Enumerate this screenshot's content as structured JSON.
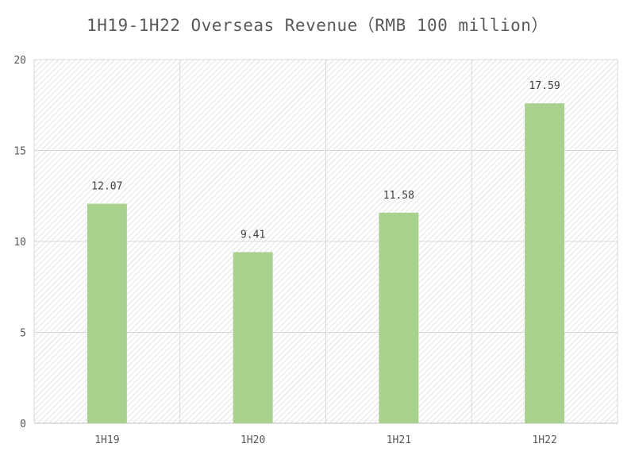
{
  "chart_data": {
    "type": "bar",
    "title": "1H19-1H22 Overseas Revenue（RMB 100 million）",
    "categories": [
      "1H19",
      "1H20",
      "1H21",
      "1H22"
    ],
    "values": [
      12.07,
      9.41,
      11.58,
      17.59
    ],
    "value_labels": [
      "12.07",
      "9.41",
      "11.58",
      "17.59"
    ],
    "xlabel": "",
    "ylabel": "",
    "ylim": [
      0,
      20
    ],
    "yticks": [
      0,
      5,
      10,
      15,
      20
    ],
    "grid": true,
    "legend": "none",
    "colors": {
      "bar": "#a9d18e",
      "grid": "#d9d9d9",
      "hatch": "#e6e6e6",
      "axis": "#bfbfbf"
    }
  }
}
